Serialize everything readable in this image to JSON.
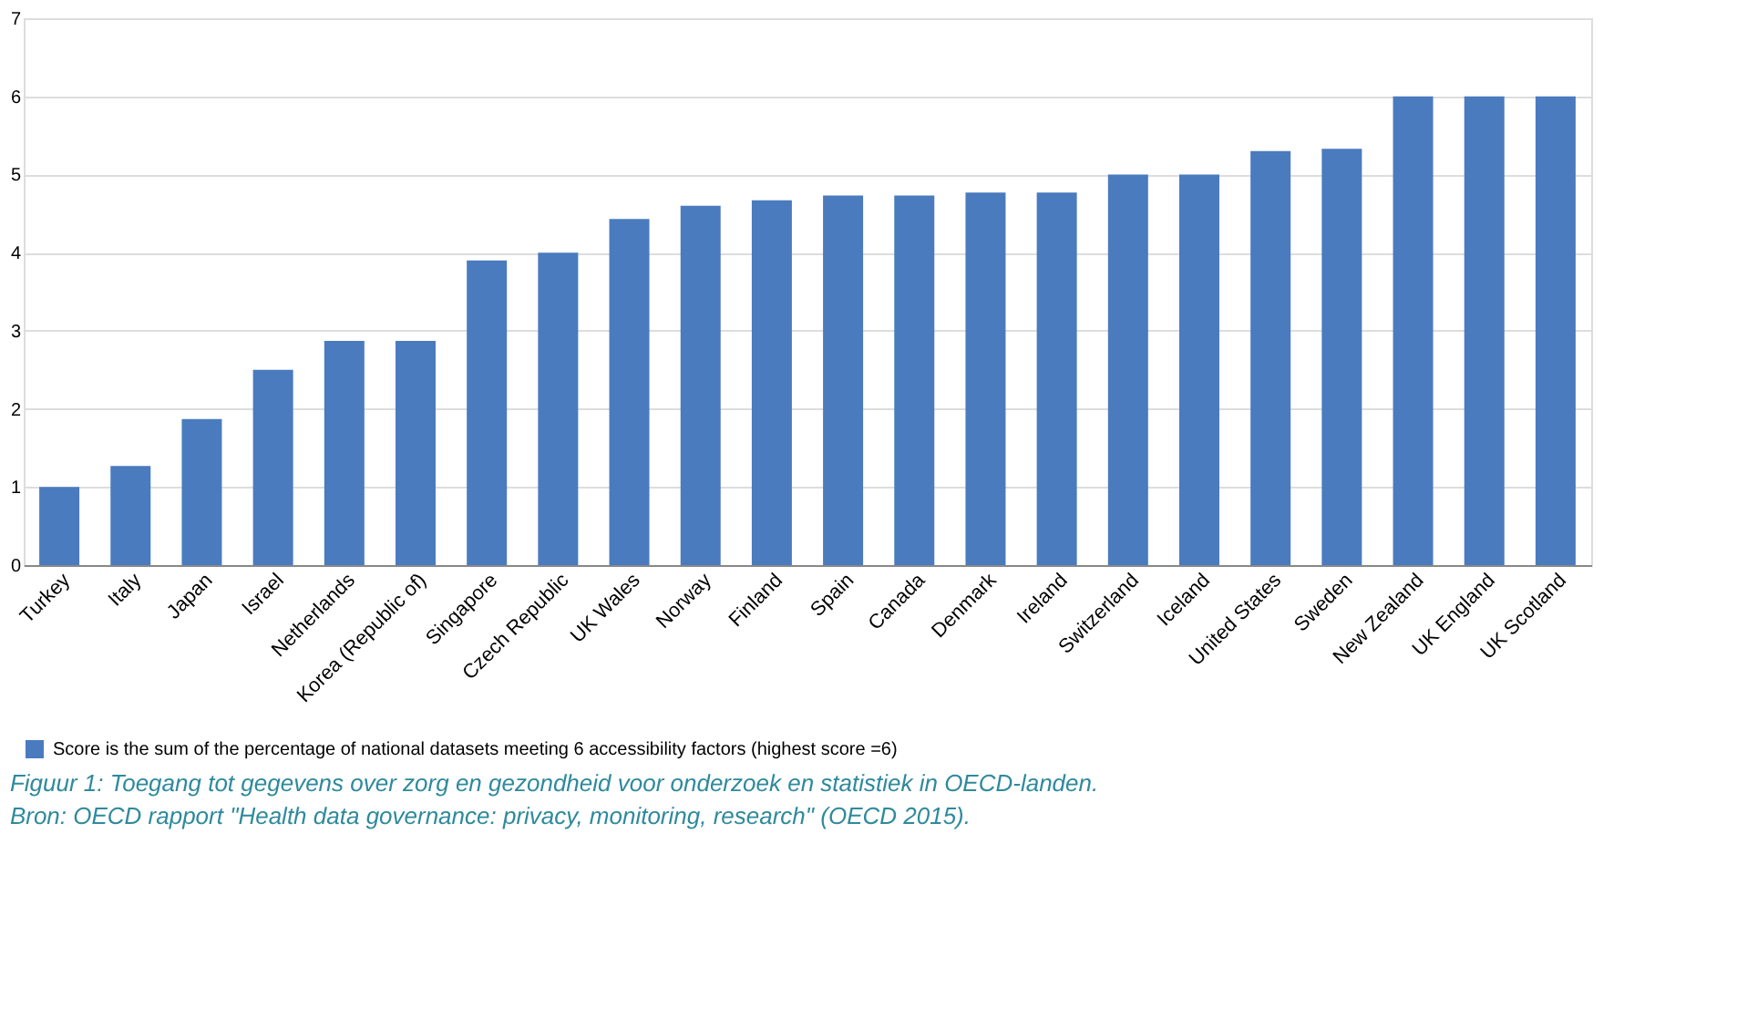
{
  "chart_data": {
    "type": "bar",
    "categories": [
      "Turkey",
      "Italy",
      "Japan",
      "Israel",
      "Netherlands",
      "Korea (Republic of)",
      "Singapore",
      "Czech Republic",
      "UK Wales",
      "Norway",
      "Finland",
      "Spain",
      "Canada",
      "Denmark",
      "Ireland",
      "Switzerland",
      "Iceland",
      "United States",
      "Sweden",
      "New Zealand",
      "UK England",
      "UK Scotland"
    ],
    "series": [
      {
        "name": "Score is the sum of the percentage of national datasets meeting 6 accessibility factors (highest score =6)",
        "color": "#4a7bbf",
        "values": [
          1.0,
          1.27,
          1.87,
          2.5,
          2.87,
          2.87,
          3.9,
          4.0,
          4.43,
          4.6,
          4.67,
          4.73,
          4.73,
          4.77,
          4.77,
          5.0,
          5.0,
          5.3,
          5.33,
          6.0,
          6.0,
          6.0
        ]
      }
    ],
    "ylim": [
      0,
      7
    ],
    "yticks": [
      0,
      1,
      2,
      3,
      4,
      5,
      6,
      7
    ],
    "grid": "y",
    "legend": "bottom",
    "annotations": [
      "Figuur 1: Toegang tot gegevens over zorg en gezondheid voor onderzoek en statistiek in OECD-landen.",
      "Bron: OECD rapport \"Health data governance: privacy, monitoring, research\" (OECD 2015)."
    ]
  }
}
